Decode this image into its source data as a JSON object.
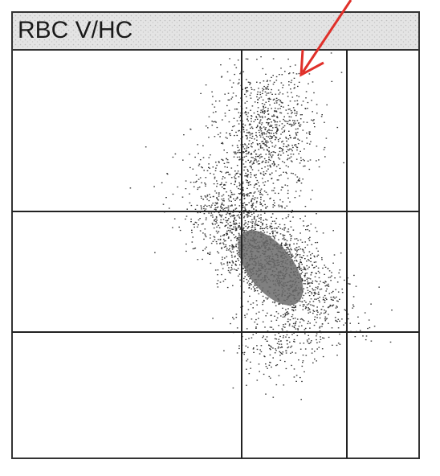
{
  "header": {
    "title": "RBC V/HC"
  }
}
